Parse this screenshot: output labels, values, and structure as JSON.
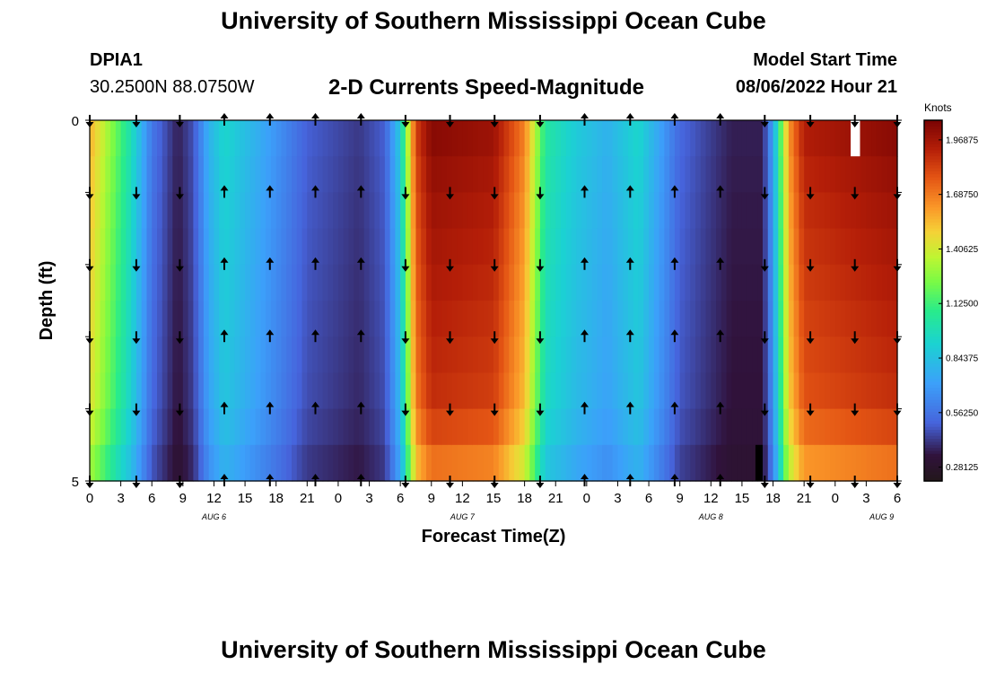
{
  "header": {
    "title": "University of Southern Mississippi Ocean Cube",
    "station": "DPIA1",
    "coords": "30.2500N  88.0750W",
    "subtitle": "2-D Currents Speed-Magnitude",
    "model_start_label": "Model Start Time",
    "model_start_value": "08/06/2022 Hour 21"
  },
  "footer": {
    "title": "University of Southern Mississippi Ocean Cube"
  },
  "chart_data": {
    "type": "heatmap",
    "title": "2-D Currents Speed-Magnitude",
    "xlabel": "Forecast Time(Z)",
    "ylabel": "Depth (ft)",
    "ylim": [
      0,
      5
    ],
    "y_ticks": [
      "0",
      "5"
    ],
    "x_tick_labels": [
      "0",
      "3",
      "6",
      "9",
      "12",
      "15",
      "18",
      "21",
      "0",
      "3",
      "6",
      "9",
      "12",
      "15",
      "18",
      "21",
      "0",
      "3",
      "6",
      "9",
      "12",
      "15",
      "18",
      "21",
      "0",
      "3",
      "6"
    ],
    "day_labels": [
      {
        "label": "AUG 6",
        "tick_index": 4
      },
      {
        "label": "AUG 7",
        "tick_index": 12
      },
      {
        "label": "AUG 8",
        "tick_index": 20
      },
      {
        "label": "AUG 9",
        "tick_index": 25.5
      }
    ],
    "colorbar": {
      "unit": "Knots",
      "min": 0.21,
      "max": 2.07,
      "tick_values": [
        1.96875,
        1.6875,
        1.40625,
        1.125,
        0.84375,
        0.5625,
        0.28125
      ],
      "tick_labels": [
        "1.96875",
        "1.68750",
        "1.40625",
        "1.12500",
        "0.84375",
        "0.56250",
        "0.28125"
      ]
    },
    "hours": [
      0,
      78
    ],
    "depth_rows": 5,
    "speed_profile_knots": [
      [
        0,
        1.5
      ],
      [
        4,
        0.95
      ],
      [
        6,
        0.55
      ],
      [
        8.5,
        0.35
      ],
      [
        10,
        0.45
      ],
      [
        11.5,
        0.75
      ],
      [
        13,
        0.9
      ],
      [
        17,
        0.7
      ],
      [
        21,
        0.48
      ],
      [
        26,
        0.4
      ],
      [
        28.5,
        0.48
      ],
      [
        30,
        0.85
      ],
      [
        31.5,
        1.75
      ],
      [
        33,
        1.95
      ],
      [
        39,
        1.9
      ],
      [
        42,
        1.6
      ],
      [
        44,
        1.0
      ],
      [
        47,
        0.85
      ],
      [
        50,
        0.75
      ],
      [
        53,
        0.9
      ],
      [
        55,
        0.7
      ],
      [
        57,
        0.5
      ],
      [
        62,
        0.35
      ],
      [
        65,
        0.35
      ],
      [
        66,
        0.7
      ],
      [
        67.5,
        1.55
      ],
      [
        69,
        1.85
      ],
      [
        78,
        1.95
      ]
    ],
    "depth_factors": [
      1.05,
      1.02,
      1.0,
      0.98,
      0.96,
      0.85
    ],
    "masked_cells": [
      {
        "hours": [
          73.5,
          74.4
        ],
        "depth_rows": [
          0,
          0.5
        ],
        "value": "no data"
      },
      {
        "hours": [
          64.3,
          65.0
        ],
        "depth_rows": [
          4.5,
          5.0
        ],
        "value": "below scale"
      }
    ],
    "arrow_hours": [
      0,
      4.5,
      8.7,
      13,
      17.4,
      21.8,
      26.2,
      30.5,
      34.8,
      39.1,
      43.5,
      47.8,
      52.2,
      56.5,
      60.9,
      65.2,
      69.6,
      73.9,
      78
    ],
    "arrow_depth_rows": [
      0,
      1,
      2,
      3,
      4,
      5
    ],
    "arrow_directions_by_column": [
      "down",
      "down",
      "down",
      "up",
      "up",
      "up",
      "up",
      "down",
      "down",
      "down",
      "down",
      "up",
      "up",
      "up",
      "up",
      "down",
      "down",
      "down",
      "down"
    ]
  }
}
